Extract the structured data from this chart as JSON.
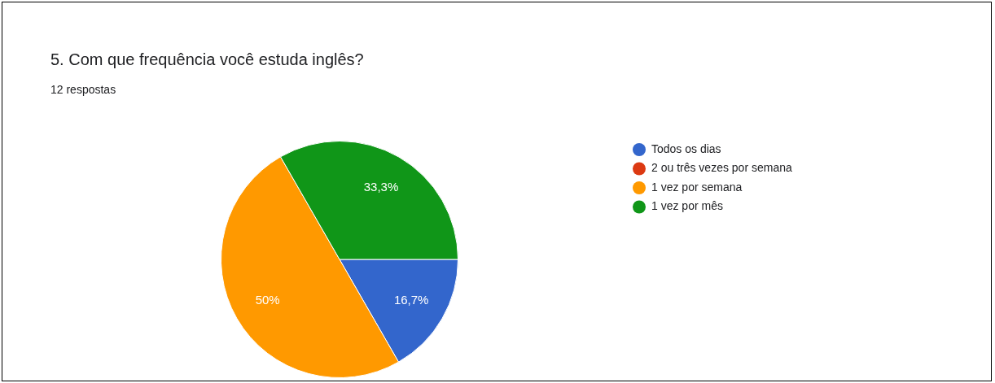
{
  "chart_data": {
    "type": "pie",
    "title": "5. Com que frequência você estuda inglês?",
    "subtitle": "12 respostas",
    "categories": [
      "Todos os dias",
      "2 ou três vezes por semana",
      "1 vez por semana",
      "1 vez por mês"
    ],
    "values": [
      16.7,
      0,
      50,
      33.3
    ],
    "colors": [
      "#3366cc",
      "#dc3912",
      "#ff9900",
      "#109618"
    ],
    "value_labels": [
      "16,7%",
      null,
      "50%",
      "33,3%"
    ],
    "legend": "right"
  }
}
